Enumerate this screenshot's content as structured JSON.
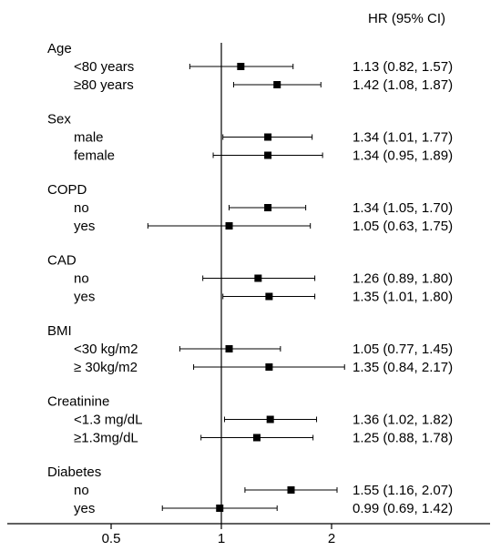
{
  "chart_data": {
    "type": "forest",
    "column_header": "HR (95% CI)",
    "x_axis": {
      "type": "log",
      "ticks": [
        0.5,
        1,
        2
      ],
      "tick_labels": [
        "0.5",
        "1",
        "2"
      ],
      "reference_line": 1
    },
    "groups": [
      {
        "name": "Age",
        "rows": [
          {
            "label": "<80 years",
            "hr": 1.13,
            "lo": 0.82,
            "hi": 1.57,
            "text": "1.13 (0.82, 1.57)"
          },
          {
            "label": "≥80 years",
            "hr": 1.42,
            "lo": 1.08,
            "hi": 1.87,
            "text": "1.42 (1.08, 1.87)"
          }
        ]
      },
      {
        "name": "Sex",
        "rows": [
          {
            "label": "male",
            "hr": 1.34,
            "lo": 1.01,
            "hi": 1.77,
            "text": "1.34 (1.01, 1.77)"
          },
          {
            "label": "female",
            "hr": 1.34,
            "lo": 0.95,
            "hi": 1.89,
            "text": "1.34 (0.95, 1.89)"
          }
        ]
      },
      {
        "name": "COPD",
        "rows": [
          {
            "label": "no",
            "hr": 1.34,
            "lo": 1.05,
            "hi": 1.7,
            "text": "1.34 (1.05, 1.70)"
          },
          {
            "label": "yes",
            "hr": 1.05,
            "lo": 0.63,
            "hi": 1.75,
            "text": "1.05 (0.63, 1.75)"
          }
        ]
      },
      {
        "name": "CAD",
        "rows": [
          {
            "label": "no",
            "hr": 1.26,
            "lo": 0.89,
            "hi": 1.8,
            "text": "1.26 (0.89, 1.80)"
          },
          {
            "label": "yes",
            "hr": 1.35,
            "lo": 1.01,
            "hi": 1.8,
            "text": "1.35 (1.01, 1.80)"
          }
        ]
      },
      {
        "name": "BMI",
        "rows": [
          {
            "label": "<30 kg/m2",
            "hr": 1.05,
            "lo": 0.77,
            "hi": 1.45,
            "text": "1.05 (0.77, 1.45)"
          },
          {
            "label": "≥ 30kg/m2",
            "hr": 1.35,
            "lo": 0.84,
            "hi": 2.17,
            "text": "1.35 (0.84, 2.17)"
          }
        ]
      },
      {
        "name": "Creatinine",
        "rows": [
          {
            "label": "<1.3 mg/dL",
            "hr": 1.36,
            "lo": 1.02,
            "hi": 1.82,
            "text": "1.36 (1.02, 1.82)"
          },
          {
            "label": "≥1.3mg/dL",
            "hr": 1.25,
            "lo": 0.88,
            "hi": 1.78,
            "text": "1.25 (0.88, 1.78)"
          }
        ]
      },
      {
        "name": "Diabetes",
        "rows": [
          {
            "label": "no",
            "hr": 1.55,
            "lo": 1.16,
            "hi": 2.07,
            "text": "1.55 (1.16, 2.07)"
          },
          {
            "label": "yes",
            "hr": 0.99,
            "lo": 0.69,
            "hi": 1.42,
            "text": "0.99 (0.69, 1.42)"
          }
        ]
      }
    ]
  }
}
